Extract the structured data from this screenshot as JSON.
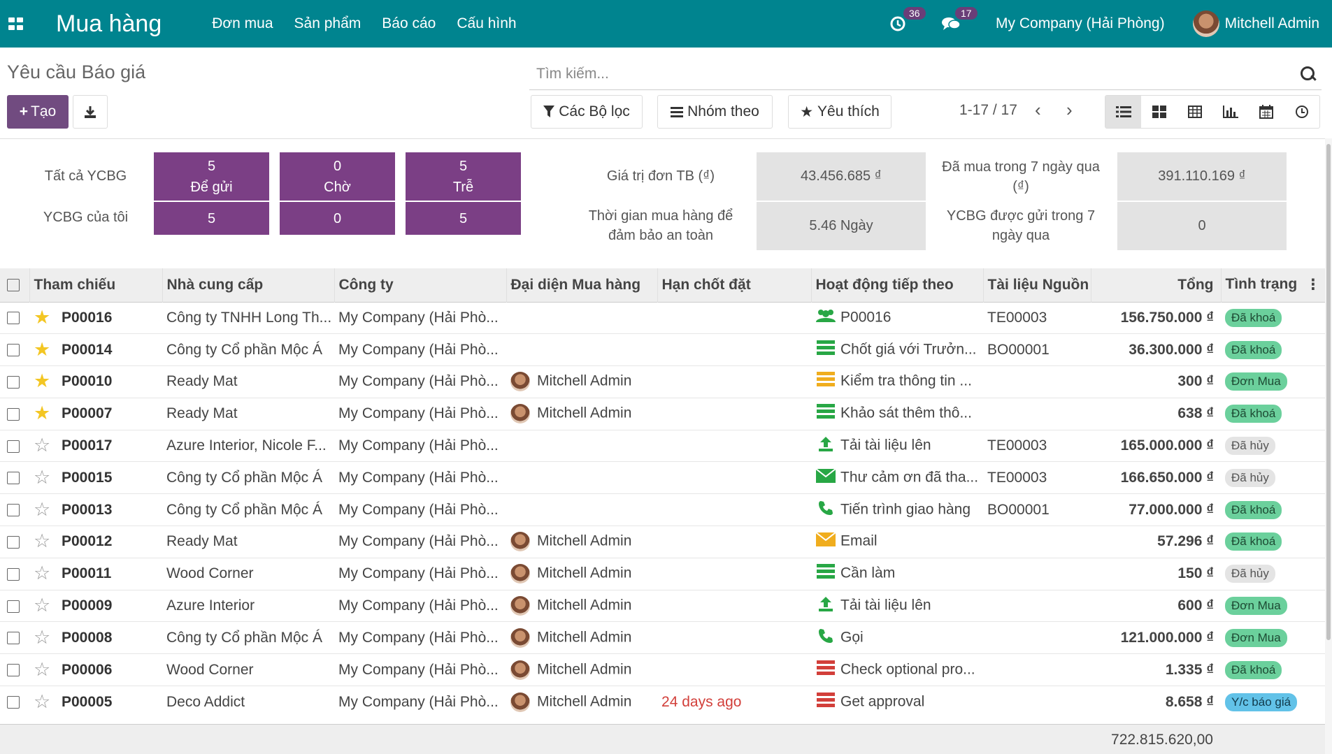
{
  "navbar": {
    "app_name": "Mua hàng",
    "menu": [
      "Đơn mua",
      "Sản phẩm",
      "Báo cáo",
      "Cấu hình"
    ],
    "activity_count": "36",
    "message_count": "17",
    "company": "My Company (Hải Phòng)",
    "user": "Mitchell Admin"
  },
  "control": {
    "breadcrumb": "Yêu cầu Báo giá",
    "search_placeholder": "Tìm kiếm...",
    "create_label": "Tạo",
    "filters_label": "Các Bộ lọc",
    "group_label": "Nhóm theo",
    "favorites_label": "Yêu thích",
    "pager": "1-17 / 17"
  },
  "dashboard": {
    "all_rfq_label": "Tất cả YCBG",
    "my_rfq_label": "YCBG của tôi",
    "tiles": [
      {
        "top": "5",
        "name": "Để gửi",
        "mine": "5"
      },
      {
        "top": "0",
        "name": "Chờ",
        "mine": "0"
      },
      {
        "top": "5",
        "name": "Trễ",
        "mine": "5"
      }
    ],
    "avg_order_label": "Giá trị đơn TB (₫)",
    "avg_order_value": "43.456.685 ₫",
    "lead_time_label": "Thời gian mua hàng để đảm bảo an toàn",
    "lead_time_value": "5.46  Ngày",
    "bought_label": "Đã mua trong 7 ngày qua (₫)",
    "bought_value": "391.110.169 ₫",
    "sent_label": "YCBG được gửi trong 7 ngày qua",
    "sent_value": "0"
  },
  "table": {
    "headers": [
      "Tham chiếu",
      "Nhà cung cấp",
      "Công ty",
      "Đại diện Mua hàng",
      "Hạn chốt đặt",
      "Hoạt động tiếp theo",
      "Tài liệu Nguồn",
      "Tổng",
      "Tình trạng"
    ],
    "rows": [
      {
        "starred": true,
        "ref": "P00016",
        "vendor": "Công ty TNHH Long Th...",
        "company": "My Company (Hải Phò...",
        "rep": "",
        "deadline": "",
        "activity_icon": "group-icon",
        "activity": "P00016",
        "source": "TE00003",
        "total": "156.750.000 ₫",
        "status": "Đã khoá",
        "status_color": "green"
      },
      {
        "starred": true,
        "ref": "P00014",
        "vendor": "Công ty Cổ phần Mộc Á",
        "company": "My Company (Hải Phò...",
        "rep": "",
        "deadline": "",
        "activity_icon": "list-green-icon",
        "activity": "Chốt giá với Trưởn...",
        "source": "BO00001",
        "total": "36.300.000 ₫",
        "status": "Đã khoá",
        "status_color": "green"
      },
      {
        "starred": true,
        "ref": "P00010",
        "vendor": "Ready Mat",
        "company": "My Company (Hải Phò...",
        "rep": "Mitchell Admin",
        "deadline": "",
        "activity_icon": "list-yellow-icon",
        "activity": "Kiểm tra thông tin ...",
        "source": "",
        "total": "300 ₫",
        "status": "Đơn Mua",
        "status_color": "green"
      },
      {
        "starred": true,
        "ref": "P00007",
        "vendor": "Ready Mat",
        "company": "My Company (Hải Phò...",
        "rep": "Mitchell Admin",
        "deadline": "",
        "activity_icon": "list-green-icon",
        "activity": "Khảo sát thêm thô...",
        "source": "",
        "total": "638 ₫",
        "status": "Đã khoá",
        "status_color": "green"
      },
      {
        "starred": false,
        "ref": "P00017",
        "vendor": "Azure Interior, Nicole F...",
        "company": "My Company (Hải Phò...",
        "rep": "",
        "deadline": "",
        "activity_icon": "upload-icon",
        "activity": "Tải tài liệu lên",
        "source": "TE00003",
        "total": "165.000.000 ₫",
        "status": "Đã hủy",
        "status_color": "grey"
      },
      {
        "starred": false,
        "ref": "P00015",
        "vendor": "Công ty Cổ phần Mộc Á",
        "company": "My Company (Hải Phò...",
        "rep": "",
        "deadline": "",
        "activity_icon": "envelope-green-icon",
        "activity": "Thư cảm ơn đã tha...",
        "source": "TE00003",
        "total": "166.650.000 ₫",
        "status": "Đã hủy",
        "status_color": "grey"
      },
      {
        "starred": false,
        "ref": "P00013",
        "vendor": "Công ty Cổ phần Mộc Á",
        "company": "My Company (Hải Phò...",
        "rep": "",
        "deadline": "",
        "activity_icon": "phone-icon",
        "activity": "Tiến trình giao hàng",
        "source": "BO00001",
        "total": "77.000.000 ₫",
        "status": "Đã khoá",
        "status_color": "green"
      },
      {
        "starred": false,
        "ref": "P00012",
        "vendor": "Ready Mat",
        "company": "My Company (Hải Phò...",
        "rep": "Mitchell Admin",
        "deadline": "",
        "activity_icon": "envelope-yellow-icon",
        "activity": "Email",
        "source": "",
        "total": "57.296 ₫",
        "status": "Đã khoá",
        "status_color": "green"
      },
      {
        "starred": false,
        "ref": "P00011",
        "vendor": "Wood Corner",
        "company": "My Company (Hải Phò...",
        "rep": "Mitchell Admin",
        "deadline": "",
        "activity_icon": "list-green-icon",
        "activity": "Cần làm",
        "source": "",
        "total": "150 ₫",
        "status": "Đã hủy",
        "status_color": "grey"
      },
      {
        "starred": false,
        "ref": "P00009",
        "vendor": "Azure Interior",
        "company": "My Company (Hải Phò...",
        "rep": "Mitchell Admin",
        "deadline": "",
        "activity_icon": "upload-icon",
        "activity": "Tải tài liệu lên",
        "source": "",
        "total": "600 ₫",
        "status": "Đơn Mua",
        "status_color": "green"
      },
      {
        "starred": false,
        "ref": "P00008",
        "vendor": "Công ty Cổ phần Mộc Á",
        "company": "My Company (Hải Phò...",
        "rep": "Mitchell Admin",
        "deadline": "",
        "activity_icon": "phone-icon",
        "activity": "Gọi",
        "source": "",
        "total": "121.000.000 ₫",
        "status": "Đơn Mua",
        "status_color": "green"
      },
      {
        "starred": false,
        "ref": "P00006",
        "vendor": "Wood Corner",
        "company": "My Company (Hải Phò...",
        "rep": "Mitchell Admin",
        "deadline": "",
        "activity_icon": "list-red-icon",
        "activity": "Check optional pro...",
        "source": "",
        "total": "1.335 ₫",
        "status": "Đã khoá",
        "status_color": "green"
      },
      {
        "starred": false,
        "ref": "P00005",
        "vendor": "Deco Addict",
        "company": "My Company (Hải Phò...",
        "rep": "Mitchell Admin",
        "deadline": "24 days ago",
        "activity_icon": "list-red-icon",
        "activity": "Get approval",
        "source": "",
        "total": "8.658 ₫",
        "status": "Y/c báo giá",
        "status_color": "blue"
      }
    ],
    "footer_total": "722.815.620,00"
  }
}
